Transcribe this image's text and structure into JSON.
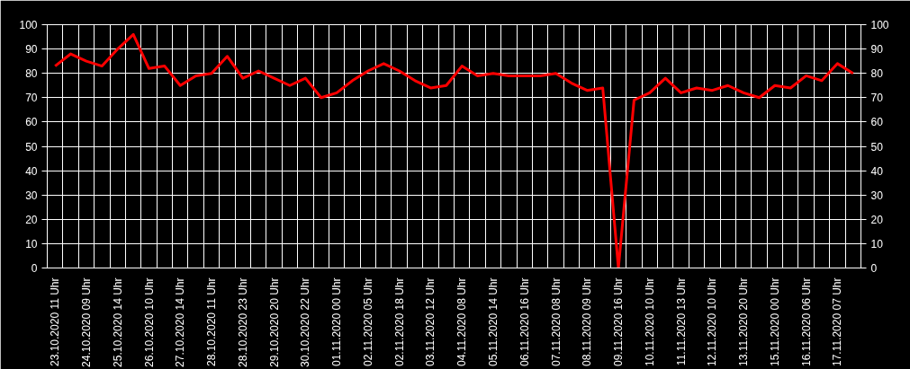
{
  "chart_data": {
    "type": "line",
    "categories": [
      "23.10.2020 11 Uhr",
      null,
      "24.10.2020 09 Uhr",
      null,
      "25.10.2020 14 Uhr",
      null,
      "26.10.2020 10 Uhr",
      null,
      "27.10.2020 14 Uhr",
      null,
      "28.10.2020 11 Uhr",
      null,
      "28.10.2020 23 Uhr",
      null,
      "29.10.2020 20 Uhr",
      null,
      "30.10.2020 22 Uhr",
      null,
      "01.11.2020 00 Uhr",
      null,
      "02.11.2020 05 Uhr",
      null,
      "02.11.2020 18 Uhr",
      null,
      "03.11.2020 12 Uhr",
      null,
      "04.11.2020 08 Uhr",
      null,
      "05.11.2020 14 Uhr",
      null,
      "06.11.2020 16 Uhr",
      null,
      "07.11.2020 08 Uhr",
      null,
      "08.11.2020 09 Uhr",
      null,
      "09.11.2020 16 Uhr",
      null,
      "10.11.2020 10 Uhr",
      null,
      "11.11.2020 13 Uhr",
      null,
      "12.11.2020 10 Uhr",
      null,
      "13.11.2020 20 Uhr",
      null,
      "15.11.2020 00 Uhr",
      null,
      "16.11.2020 06 Uhr",
      null,
      "17.11.2020 07 Uhr",
      null
    ],
    "series": [
      {
        "color": "#ff0000",
        "values": [
          83,
          88,
          85,
          83,
          90,
          96,
          82,
          83,
          75,
          79,
          80,
          87,
          78,
          81,
          78,
          75,
          78,
          70,
          72,
          77,
          81,
          84,
          81,
          77,
          74,
          75,
          83,
          79,
          80,
          79,
          79,
          79,
          80,
          76,
          73,
          74,
          0,
          69,
          72,
          78,
          72,
          74,
          73,
          75,
          72,
          70,
          75,
          74,
          79,
          77,
          84,
          80
        ]
      }
    ],
    "ylim": [
      0,
      100
    ],
    "yticks": [
      0,
      10,
      20,
      30,
      40,
      50,
      60,
      70,
      80,
      90,
      100
    ],
    "y2lim": [
      0,
      100
    ],
    "y2ticks": [
      0,
      10,
      20,
      30,
      40,
      50,
      60,
      70,
      80,
      90,
      100
    ],
    "grid": true,
    "marker": "none",
    "line_style": "solid"
  }
}
